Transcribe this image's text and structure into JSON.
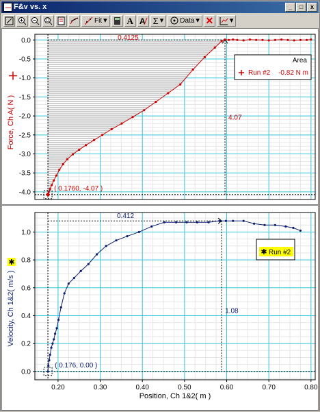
{
  "window": {
    "title": "F&v vs. x"
  },
  "window_buttons": {
    "minimize": "_",
    "maximize": "□",
    "close": "x"
  },
  "toolbar": {
    "fit_label": "Fit",
    "data_label": "Data",
    "buttons": [
      "autoscale",
      "zoom-in",
      "zoom-out",
      "zoom-box",
      "examine",
      "tangent",
      "fit",
      "stats-box",
      "text",
      "annotate",
      "stats",
      "data",
      "delete",
      "graph-options"
    ]
  },
  "chart_data": [
    {
      "type": "line",
      "title": "",
      "ylabel": "Force, Ch A( N )",
      "xlabel": "",
      "ylim": [
        -4.2,
        0.15
      ],
      "xlim": [
        0.145,
        0.81
      ],
      "yticks": [
        "0.0",
        "-0.5",
        "-1.0",
        "-1.5",
        "-2.0",
        "-2.5",
        "-3.0",
        "-3.5",
        "-4.0"
      ],
      "ytick_values": [
        0,
        -0.5,
        -1.0,
        -1.5,
        -2.0,
        -2.5,
        -3.0,
        -3.5,
        -4.0
      ],
      "color": "#cc0000",
      "series": [
        {
          "name": "Run #2",
          "x": [
            0.176,
            0.178,
            0.181,
            0.185,
            0.19,
            0.196,
            0.203,
            0.212,
            0.222,
            0.235,
            0.25,
            0.266,
            0.285,
            0.305,
            0.327,
            0.351,
            0.377,
            0.404,
            0.432,
            0.461,
            0.49,
            0.52,
            0.548,
            0.572,
            0.588,
            0.596,
            0.605,
            0.615,
            0.625,
            0.64,
            0.655,
            0.67,
            0.685,
            0.7,
            0.715,
            0.73,
            0.745,
            0.76,
            0.775,
            0.79,
            0.8
          ],
          "y": [
            -4.07,
            -4.0,
            -3.92,
            -3.82,
            -3.7,
            -3.57,
            -3.42,
            -3.27,
            -3.14,
            -3.01,
            -2.89,
            -2.77,
            -2.64,
            -2.5,
            -2.35,
            -2.2,
            -2.03,
            -1.85,
            -1.63,
            -1.4,
            -1.17,
            -0.78,
            -0.45,
            -0.2,
            -0.03,
            0.01,
            0.0,
            0.01,
            0.0,
            -0.01,
            0.01,
            0.0,
            0.0,
            -0.01,
            0.0,
            0.01,
            0.0,
            -0.01,
            0.0,
            0.0,
            0.01
          ]
        }
      ],
      "area_label": "0.4125",
      "examine_point": "( 0.1760, -4.07 )",
      "delta_label": "4.07",
      "legend": {
        "header": "Area",
        "run": "Run #2",
        "value": "-0.82 N m",
        "placement": "top-right"
      }
    },
    {
      "type": "line",
      "title": "",
      "ylabel": "Velocity, Ch 1&2( m/s )",
      "xlabel": "Position, Ch 1&2( m )",
      "ylim": [
        -0.06,
        1.14
      ],
      "xlim": [
        0.145,
        0.81
      ],
      "yticks": [
        "1.0",
        "0.8",
        "0.6",
        "0.4",
        "0.2",
        "0.0"
      ],
      "ytick_values": [
        1.0,
        0.8,
        0.6,
        0.4,
        0.2,
        0.0
      ],
      "xticks": [
        "0.20",
        "0.30",
        "0.40",
        "0.50",
        "0.60",
        "0.70",
        "0.80"
      ],
      "xtick_values": [
        0.2,
        0.3,
        0.4,
        0.5,
        0.6,
        0.7,
        0.8
      ],
      "color": "#0a1e6e",
      "series": [
        {
          "name": "Run #2",
          "x": [
            0.176,
            0.177,
            0.179,
            0.181,
            0.184,
            0.187,
            0.19,
            0.193,
            0.197,
            0.201,
            0.207,
            0.215,
            0.225,
            0.238,
            0.254,
            0.272,
            0.292,
            0.314,
            0.338,
            0.364,
            0.392,
            0.422,
            0.452,
            0.48,
            0.505,
            0.53,
            0.557,
            0.583,
            0.598,
            0.615,
            0.64,
            0.665,
            0.69,
            0.715,
            0.74,
            0.758,
            0.775
          ],
          "y": [
            0.0,
            0.04,
            0.08,
            0.12,
            0.17,
            0.2,
            0.23,
            0.27,
            0.31,
            0.37,
            0.46,
            0.56,
            0.63,
            0.67,
            0.72,
            0.77,
            0.84,
            0.9,
            0.94,
            0.97,
            1.0,
            1.04,
            1.07,
            1.07,
            1.07,
            1.07,
            1.07,
            1.08,
            1.08,
            1.08,
            1.08,
            1.06,
            1.05,
            1.05,
            1.04,
            1.03,
            1.01
          ]
        }
      ],
      "delta_x_label": "0.412",
      "examine_point": "( 0.176, 0.00 )",
      "delta_label": "1.08",
      "legend": {
        "run": "Run #2",
        "placement": "right"
      }
    }
  ]
}
